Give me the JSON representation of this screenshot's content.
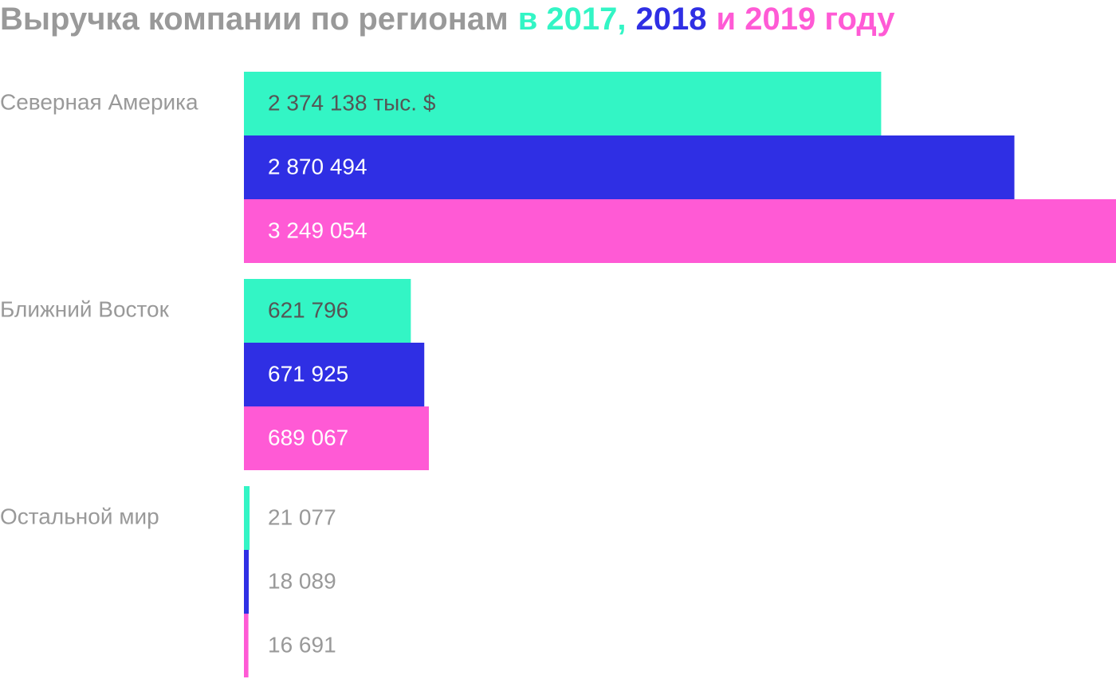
{
  "chart_data": {
    "type": "bar",
    "orientation": "horizontal",
    "title": "Выручка компании по регионам",
    "title_legend": [
      "в 2017,",
      "2018",
      "и 2019 году"
    ],
    "categories": [
      "Северная Америка",
      "Ближний Восток",
      "Остальной мир"
    ],
    "series": [
      {
        "color": "#33f5c5",
        "values": [
          2374138,
          621796,
          21077
        ],
        "value_labels": [
          "2 374 138 тыс. $",
          "621 796",
          "21 077"
        ]
      },
      {
        "color": "#2f2fe4",
        "values": [
          2870494,
          671925,
          18089
        ],
        "value_labels": [
          "2 870 494",
          "671 925",
          "18 089"
        ]
      },
      {
        "color": "#ff5ad5",
        "values": [
          3249054,
          689067,
          16691
        ],
        "value_labels": [
          "3 249 054",
          "689 067",
          "16 691"
        ]
      }
    ],
    "xlim": [
      0,
      3249054
    ]
  }
}
